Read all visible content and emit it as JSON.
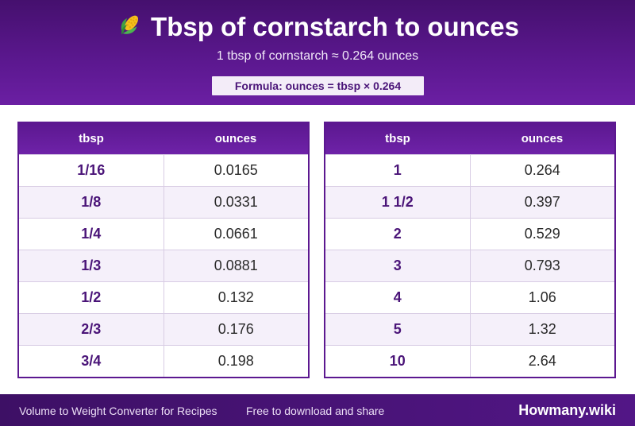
{
  "header": {
    "icon": "corn-emoji-icon",
    "title": "Tbsp of cornstarch to ounces",
    "subtitle": "1 tbsp of cornstarch ≈ 0.264 ounces",
    "formula": "Formula: ounces = tbsp × 0.264"
  },
  "tables": [
    {
      "headers": [
        "tbsp",
        "ounces"
      ],
      "rows": [
        [
          "1/16",
          "0.0165"
        ],
        [
          "1/8",
          "0.0331"
        ],
        [
          "1/4",
          "0.0661"
        ],
        [
          "1/3",
          "0.0881"
        ],
        [
          "1/2",
          "0.132"
        ],
        [
          "2/3",
          "0.176"
        ],
        [
          "3/4",
          "0.198"
        ]
      ]
    },
    {
      "headers": [
        "tbsp",
        "ounces"
      ],
      "rows": [
        [
          "1",
          "0.264"
        ],
        [
          "1 1/2",
          "0.397"
        ],
        [
          "2",
          "0.529"
        ],
        [
          "3",
          "0.793"
        ],
        [
          "4",
          "1.06"
        ],
        [
          "5",
          "1.32"
        ],
        [
          "10",
          "2.64"
        ]
      ]
    }
  ],
  "footer": {
    "left_text": "Volume to Weight Converter for Recipes",
    "mid_text": "Free to download and share",
    "brand": "Howmany.wiki"
  },
  "colors": {
    "header_purple": "#5c1890",
    "accent_text": "#4a1478",
    "alt_row": "#f5f0fa"
  }
}
